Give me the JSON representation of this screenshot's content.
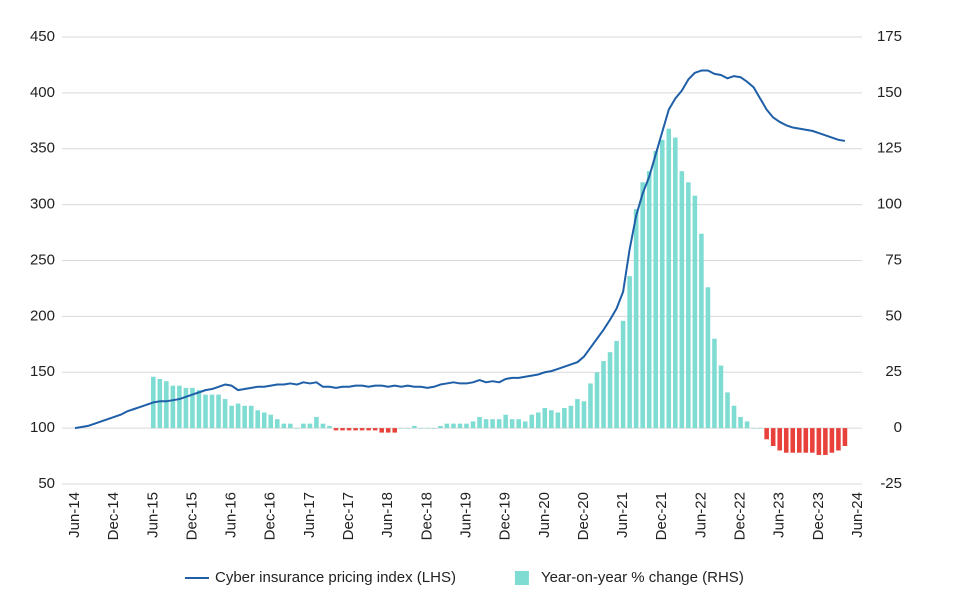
{
  "chart_data": {
    "type": "combo",
    "categories": [
      "Jun-14",
      null,
      null,
      null,
      null,
      null,
      "Dec-14",
      null,
      null,
      null,
      null,
      null,
      "Jun-15",
      null,
      null,
      null,
      null,
      null,
      "Dec-15",
      null,
      null,
      null,
      null,
      null,
      "Jun-16",
      null,
      null,
      null,
      null,
      null,
      "Dec-16",
      null,
      null,
      null,
      null,
      null,
      "Jun-17",
      null,
      null,
      null,
      null,
      null,
      "Dec-17",
      null,
      null,
      null,
      null,
      null,
      "Jun-18",
      null,
      null,
      null,
      null,
      null,
      "Dec-18",
      null,
      null,
      null,
      null,
      null,
      "Jun-19",
      null,
      null,
      null,
      null,
      null,
      "Dec-19",
      null,
      null,
      null,
      null,
      null,
      "Jun-20",
      null,
      null,
      null,
      null,
      null,
      "Dec-20",
      null,
      null,
      null,
      null,
      null,
      "Jun-21",
      null,
      null,
      null,
      null,
      null,
      "Dec-21",
      null,
      null,
      null,
      null,
      null,
      "Jun-22",
      null,
      null,
      null,
      null,
      null,
      "Dec-22",
      null,
      null,
      null,
      null,
      null,
      "Jun-23",
      null,
      null,
      null,
      null,
      null,
      "Dec-23",
      null,
      null,
      null,
      null,
      null,
      "Jun-24"
    ],
    "series": [
      {
        "name": "Cyber insurance pricing index (LHS)",
        "type": "line",
        "color": "#1f5fa8",
        "values": [
          100,
          101,
          102,
          104,
          106,
          108,
          110,
          112,
          115,
          117,
          119,
          121,
          123,
          124,
          124,
          125,
          126,
          128,
          130,
          132,
          134,
          135,
          137,
          139,
          138,
          134,
          135,
          136,
          137,
          137,
          138,
          139,
          139,
          140,
          139,
          141,
          140,
          141,
          137,
          137,
          136,
          137,
          137,
          138,
          138,
          137,
          138,
          138,
          137,
          138,
          137,
          138,
          137,
          137,
          136,
          137,
          139,
          140,
          141,
          140,
          140,
          141,
          143,
          141,
          142,
          141,
          144,
          145,
          145,
          146,
          147,
          148,
          150,
          151,
          153,
          155,
          157,
          159,
          164,
          172,
          180,
          188,
          197,
          207,
          222,
          260,
          290,
          310,
          325,
          345,
          365,
          385,
          395,
          402,
          412,
          418,
          420,
          420,
          417,
          416,
          413,
          415,
          414,
          410,
          405,
          395,
          385,
          378,
          374,
          371,
          369,
          368,
          367,
          366,
          364,
          362,
          360,
          358,
          357,
          null,
          null
        ]
      },
      {
        "name": "Year-on-year % change (RHS)",
        "type": "bar",
        "axis": "y2",
        "color": "#7fdcd3",
        "negative_color": "#e8413b",
        "values": [
          null,
          null,
          null,
          null,
          null,
          null,
          null,
          null,
          null,
          null,
          null,
          null,
          23,
          22,
          21,
          19,
          19,
          18,
          18,
          17,
          15,
          15,
          15,
          13,
          10,
          11,
          10,
          10,
          8,
          7,
          6,
          4,
          2,
          2,
          0,
          2,
          2,
          5,
          2,
          1,
          -1,
          -1,
          -1,
          -1,
          -1,
          -1,
          -1,
          -2,
          -2,
          -2,
          0,
          0,
          1,
          0,
          0,
          0,
          1,
          2,
          2,
          2,
          2,
          3,
          5,
          4,
          4,
          4,
          6,
          4,
          4,
          3,
          6,
          7,
          9,
          8,
          7,
          9,
          10,
          13,
          12,
          20,
          25,
          30,
          34,
          39,
          48,
          68,
          98,
          110,
          115,
          124,
          129,
          134,
          130,
          115,
          110,
          104,
          87,
          63,
          40,
          28,
          16,
          10,
          5,
          3,
          0,
          0,
          -5,
          -8,
          -10,
          -11,
          -11,
          -11,
          -11,
          -11,
          -12,
          -12,
          -11,
          -10,
          -8,
          null,
          null
        ]
      }
    ],
    "ylim": [
      50,
      450
    ],
    "yticks": [
      50,
      100,
      150,
      200,
      250,
      300,
      350,
      400,
      450
    ],
    "y2lim": [
      -25,
      175
    ],
    "y2ticks": [
      -25,
      0,
      25,
      50,
      75,
      100,
      125,
      150,
      175
    ],
    "grid": true,
    "legend": "bottom"
  }
}
